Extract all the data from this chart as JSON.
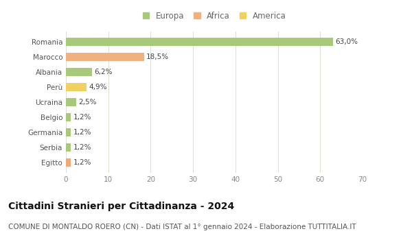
{
  "categories": [
    "Egitto",
    "Serbia",
    "Germania",
    "Belgio",
    "Ucraina",
    "Perù",
    "Albania",
    "Marocco",
    "Romania"
  ],
  "values": [
    1.2,
    1.2,
    1.2,
    1.2,
    2.5,
    4.9,
    6.2,
    18.5,
    63.0
  ],
  "labels": [
    "1,2%",
    "1,2%",
    "1,2%",
    "1,2%",
    "2,5%",
    "4,9%",
    "6,2%",
    "18,5%",
    "63,0%"
  ],
  "colors": [
    "#f0a878",
    "#a8c87a",
    "#a8c87a",
    "#a8c87a",
    "#a8c87a",
    "#f0d060",
    "#a8c87a",
    "#f0b080",
    "#a8c87a"
  ],
  "legend": [
    {
      "label": "Europa",
      "color": "#a8c87a"
    },
    {
      "label": "Africa",
      "color": "#f0b080"
    },
    {
      "label": "America",
      "color": "#f0d060"
    }
  ],
  "xlim": [
    0,
    70
  ],
  "xticks": [
    0,
    10,
    20,
    30,
    40,
    50,
    60,
    70
  ],
  "title": "Cittadini Stranieri per Cittadinanza - 2024",
  "subtitle": "COMUNE DI MONTALDO ROERO (CN) - Dati ISTAT al 1° gennaio 2024 - Elaborazione TUTTITALIA.IT",
  "background_color": "#ffffff",
  "grid_color": "#e0e0d0",
  "bar_height": 0.55,
  "title_fontsize": 10,
  "subtitle_fontsize": 7.5,
  "label_fontsize": 7.5,
  "tick_fontsize": 7.5,
  "legend_fontsize": 8.5
}
